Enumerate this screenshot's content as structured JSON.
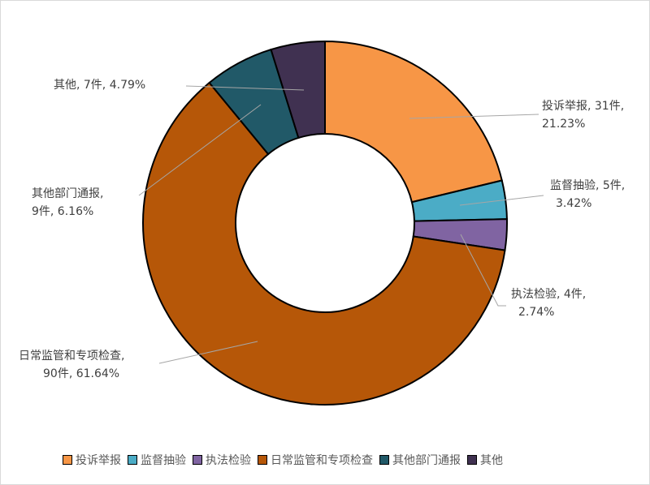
{
  "chart_data": {
    "type": "pie",
    "variant": "donut",
    "categories": [
      "投诉举报",
      "监督抽验",
      "执法检验",
      "日常监管和专项检查",
      "其他部门通报",
      "其他"
    ],
    "values": [
      31,
      5,
      4,
      90,
      9,
      7
    ],
    "percents": [
      "21.23%",
      "3.42%",
      "2.74%",
      "61.64%",
      "6.16%",
      "4.79%"
    ],
    "data_labels": [
      {
        "line1": "投诉举报, 31件,",
        "line2": "21.23%"
      },
      {
        "line1": "监督抽验, 5件,",
        "line2": "3.42%"
      },
      {
        "line1": "执法检验, 4件,",
        "line2": "2.74%"
      },
      {
        "line1": "日常监管和专项检查,",
        "line2": "90件, 61.64%"
      },
      {
        "line1": "其他部门通报,",
        "line2": "9件, 6.16%"
      },
      {
        "line1": "其他, 7件, 4.79%",
        "line2": ""
      }
    ],
    "colors": [
      "#F79646",
      "#4BACC6",
      "#8064A2",
      "#B65708",
      "#215968",
      "#403151"
    ],
    "legend_position": "bottom"
  }
}
